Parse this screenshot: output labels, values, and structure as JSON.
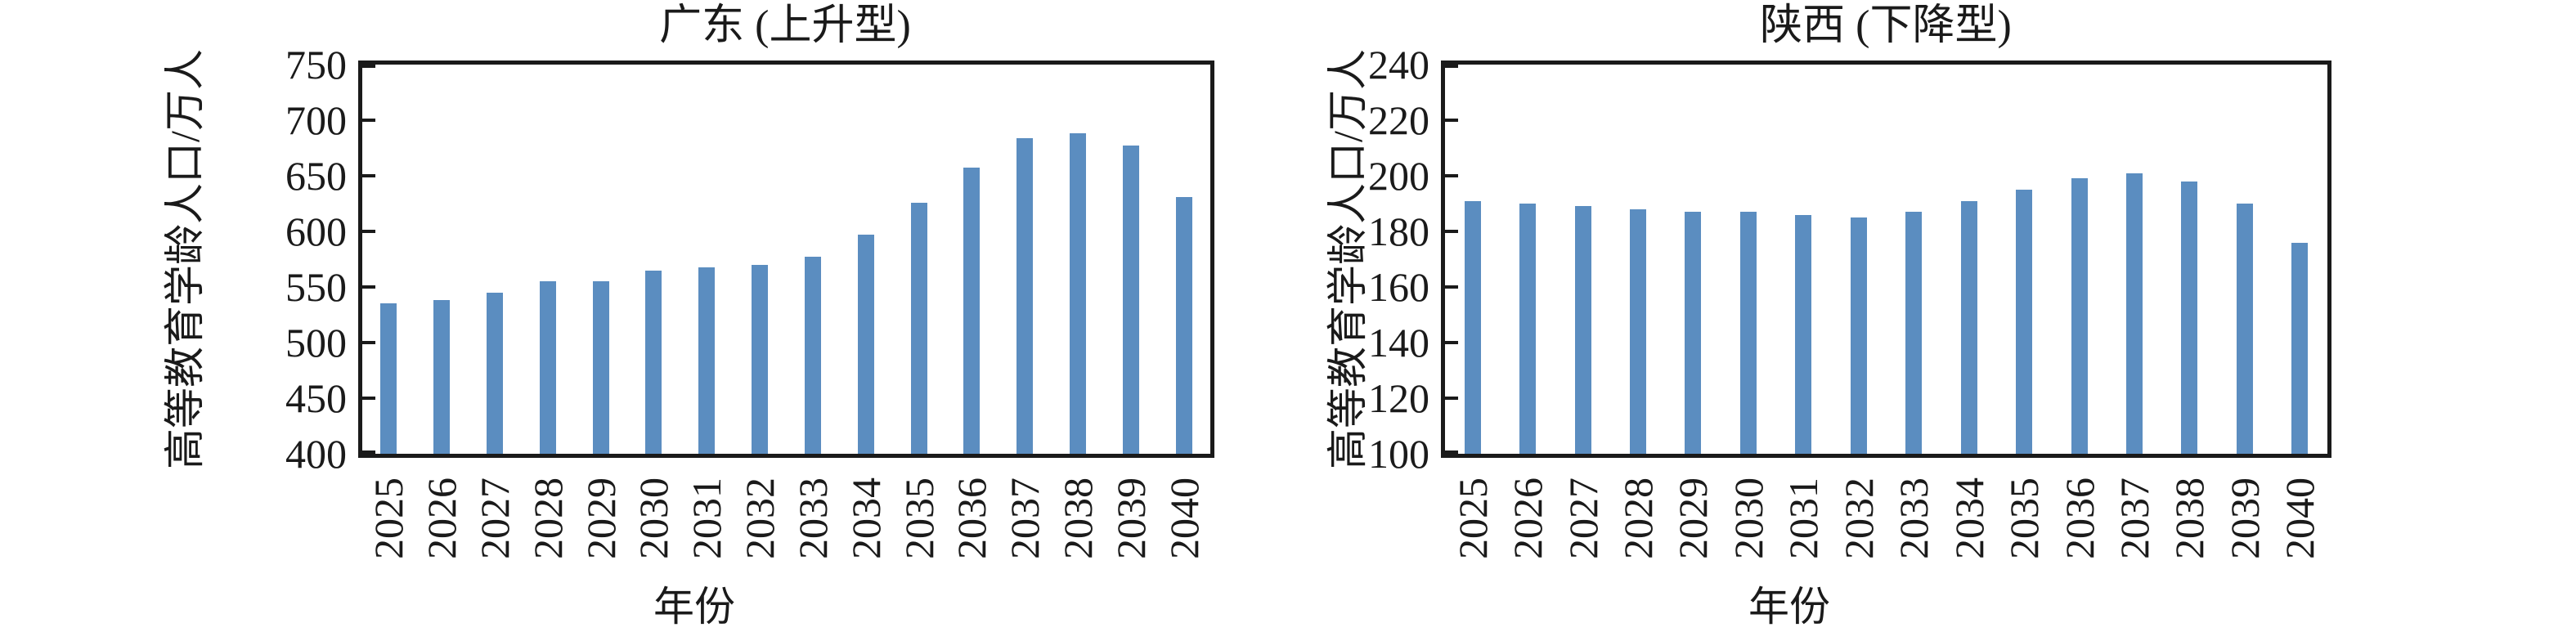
{
  "figure": {
    "background": "#ffffff",
    "bar_color": "#5B8DC0",
    "axis_color": "#1a1a1a",
    "text_color": "#1a1a1a"
  },
  "chart_data": [
    {
      "type": "bar",
      "title": "广东 (上升型)",
      "ylabel": "高等教育学龄人口/万人",
      "xlabel": "年份",
      "categories": [
        "2025",
        "2026",
        "2027",
        "2028",
        "2029",
        "2030",
        "2031",
        "2032",
        "2033",
        "2034",
        "2035",
        "2036",
        "2037",
        "2038",
        "2039",
        "2040"
      ],
      "values": [
        535,
        538,
        545,
        555,
        555,
        565,
        568,
        570,
        577,
        597,
        626,
        657,
        684,
        688,
        677,
        631
      ],
      "ylim": [
        400,
        750
      ],
      "yticks": [
        400,
        450,
        500,
        550,
        600,
        650,
        700,
        750
      ],
      "grid": false,
      "legend": false,
      "tick_direction": "in",
      "x_tick_rotation_deg": 90
    },
    {
      "type": "bar",
      "title": "陕西 (下降型)",
      "ylabel": "高等教育学龄人口/万人",
      "xlabel": "年份",
      "categories": [
        "2025",
        "2026",
        "2027",
        "2028",
        "2029",
        "2030",
        "2031",
        "2032",
        "2033",
        "2034",
        "2035",
        "2036",
        "2037",
        "2038",
        "2039",
        "2040"
      ],
      "values": [
        191,
        190,
        189,
        188,
        187,
        187,
        186,
        185,
        187,
        191,
        195,
        199,
        201,
        198,
        190,
        176
      ],
      "ylim": [
        100,
        240
      ],
      "yticks": [
        100,
        120,
        140,
        160,
        180,
        200,
        220,
        240
      ],
      "grid": false,
      "legend": false,
      "tick_direction": "in",
      "x_tick_rotation_deg": 90
    }
  ]
}
